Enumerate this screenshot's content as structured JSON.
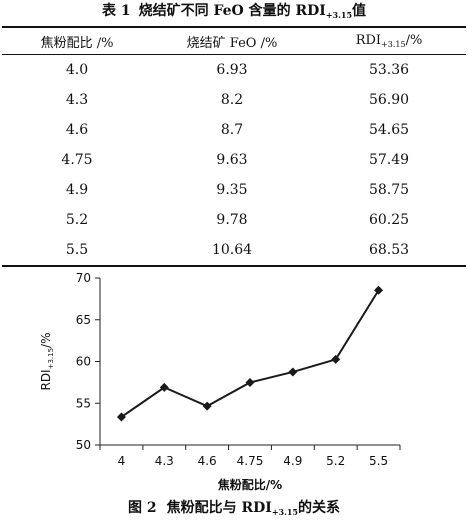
{
  "table": {
    "caption_num": "表 1",
    "caption_text": "烧结矿不同 FeO 含量的 RDI",
    "caption_sub": "+3.15",
    "caption_suffix": "值",
    "headers": {
      "col1": "焦粉配比 /%",
      "col2": "烧结矿 FeO /%",
      "col3_main": "RDI",
      "col3_sub": "+3.15",
      "col3_suffix": "/%"
    },
    "rows": [
      [
        "4.0",
        "6.93",
        "53.36"
      ],
      [
        "4.3",
        "8.2",
        "56.90"
      ],
      [
        "4.6",
        "8.7",
        "54.65"
      ],
      [
        "4.75",
        "9.63",
        "57.49"
      ],
      [
        "4.9",
        "9.35",
        "58.75"
      ],
      [
        "5.2",
        "9.78",
        "60.25"
      ],
      [
        "5.5",
        "10.64",
        "68.53"
      ]
    ]
  },
  "figure": {
    "caption_num": "图 2",
    "caption_text": "焦粉配比与 RDI",
    "caption_sub": "+3.15",
    "caption_suffix": "的关系"
  },
  "chart_data": {
    "type": "line",
    "categories": [
      "4",
      "4.3",
      "4.6",
      "4.75",
      "4.9",
      "5.2",
      "5.5"
    ],
    "values": [
      53.36,
      56.9,
      54.65,
      57.49,
      58.75,
      60.25,
      68.53
    ],
    "xlabel": "焦粉配比/%",
    "ylabel": "RDI",
    "ylabel_sub": "+3.15",
    "ylabel_suffix": "/%",
    "ylim": [
      50,
      70
    ],
    "yticks": [
      "50",
      "55",
      "60",
      "65",
      "70"
    ],
    "grid": false,
    "marker": "diamond",
    "line_color": "#1a1a1a"
  }
}
